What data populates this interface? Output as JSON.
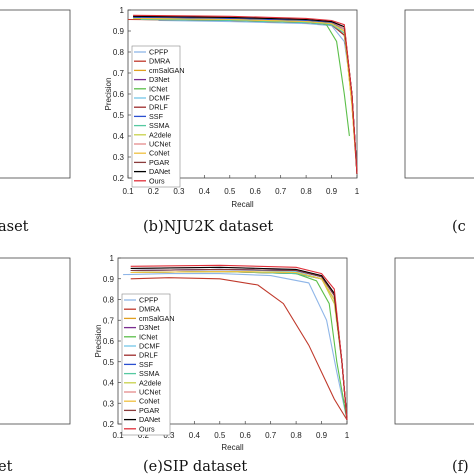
{
  "figure": {
    "captions": {
      "left_top": "aset",
      "middle_top": "(b)NJU2K dataset",
      "right_top": "(c",
      "left_bottom": "et",
      "middle_bottom": "(e)SIP dataset",
      "right_bottom": "(f)"
    }
  },
  "legend_items": [
    {
      "name": "CPFP",
      "color": "#8fb6e8"
    },
    {
      "name": "DMRA",
      "color": "#c0392b"
    },
    {
      "name": "cmSalGAN",
      "color": "#e0a020"
    },
    {
      "name": "D3Net",
      "color": "#7a2d8f"
    },
    {
      "name": "ICNet",
      "color": "#5cbf4a"
    },
    {
      "name": "DCMF",
      "color": "#74c7e8"
    },
    {
      "name": "DRLF",
      "color": "#9e2b2b"
    },
    {
      "name": "SSF",
      "color": "#2a4fd0"
    },
    {
      "name": "SSMA",
      "color": "#55c9a0"
    },
    {
      "name": "A2dele",
      "color": "#c8d24a"
    },
    {
      "name": "UCNet",
      "color": "#e58b8b"
    },
    {
      "name": "CoNet",
      "color": "#f0c040"
    },
    {
      "name": "PGAR",
      "color": "#8a3c3c"
    },
    {
      "name": "DANet",
      "color": "#000000"
    },
    {
      "name": "Ours",
      "color": "#e0303a"
    }
  ],
  "chart_data": [
    {
      "type": "line",
      "panel": "b",
      "title": "(b)NJU2K dataset",
      "xlabel": "Recall",
      "ylabel": "Precision",
      "xlim": [
        0.1,
        1
      ],
      "ylim": [
        0.2,
        1
      ],
      "xticks": [
        "0.1",
        "0.2",
        "0.3",
        "0.4",
        "0.5",
        "0.6",
        "0.7",
        "0.8",
        "0.9",
        "1"
      ],
      "yticks": [
        "0.2",
        "0.3",
        "0.4",
        "0.5",
        "0.6",
        "0.7",
        "0.8",
        "0.9",
        "1"
      ],
      "series": [
        {
          "name": "CPFP",
          "x": [
            0.22,
            0.5,
            0.8,
            0.9,
            0.95,
            0.98,
            1.0
          ],
          "y": [
            0.95,
            0.945,
            0.935,
            0.925,
            0.85,
            0.6,
            0.22
          ]
        },
        {
          "name": "DMRA",
          "x": [
            0.1,
            0.5,
            0.8,
            0.9,
            0.95,
            0.98,
            1.0
          ],
          "y": [
            0.955,
            0.95,
            0.94,
            0.93,
            0.88,
            0.6,
            0.22
          ]
        },
        {
          "name": "cmSalGAN",
          "x": [
            0.15,
            0.5,
            0.8,
            0.9,
            0.95,
            0.98,
            1.0
          ],
          "y": [
            0.96,
            0.955,
            0.945,
            0.935,
            0.9,
            0.55,
            0.22
          ]
        },
        {
          "name": "D3Net",
          "x": [
            0.15,
            0.5,
            0.8,
            0.9,
            0.95,
            0.98,
            1.0
          ],
          "y": [
            0.965,
            0.96,
            0.95,
            0.94,
            0.91,
            0.6,
            0.22
          ]
        },
        {
          "name": "ICNet",
          "x": [
            0.2,
            0.5,
            0.8,
            0.88,
            0.92,
            0.95,
            0.97
          ],
          "y": [
            0.96,
            0.955,
            0.945,
            0.93,
            0.85,
            0.6,
            0.4
          ]
        },
        {
          "name": "DCMF",
          "x": [
            0.15,
            0.5,
            0.8,
            0.9,
            0.95,
            0.98,
            1.0
          ],
          "y": [
            0.965,
            0.96,
            0.95,
            0.94,
            0.9,
            0.58,
            0.22
          ]
        },
        {
          "name": "DRLF",
          "x": [
            0.15,
            0.5,
            0.8,
            0.9,
            0.95,
            0.98,
            1.0
          ],
          "y": [
            0.955,
            0.95,
            0.94,
            0.93,
            0.88,
            0.6,
            0.22
          ]
        },
        {
          "name": "SSF",
          "x": [
            0.12,
            0.5,
            0.8,
            0.9,
            0.95,
            0.98,
            1.0
          ],
          "y": [
            0.965,
            0.96,
            0.95,
            0.94,
            0.91,
            0.6,
            0.22
          ]
        },
        {
          "name": "SSMA",
          "x": [
            0.15,
            0.5,
            0.8,
            0.9,
            0.95,
            0.98,
            1.0
          ],
          "y": [
            0.955,
            0.95,
            0.94,
            0.93,
            0.89,
            0.6,
            0.22
          ]
        },
        {
          "name": "A2dele",
          "x": [
            0.12,
            0.5,
            0.8,
            0.9,
            0.95,
            0.98,
            1.0
          ],
          "y": [
            0.96,
            0.955,
            0.945,
            0.935,
            0.9,
            0.55,
            0.22
          ]
        },
        {
          "name": "UCNet",
          "x": [
            0.15,
            0.5,
            0.8,
            0.9,
            0.95,
            0.98,
            1.0
          ],
          "y": [
            0.97,
            0.965,
            0.955,
            0.945,
            0.91,
            0.6,
            0.22
          ]
        },
        {
          "name": "CoNet",
          "x": [
            0.15,
            0.5,
            0.8,
            0.9,
            0.95,
            0.98,
            1.0
          ],
          "y": [
            0.96,
            0.955,
            0.945,
            0.935,
            0.9,
            0.55,
            0.22
          ]
        },
        {
          "name": "PGAR",
          "x": [
            0.12,
            0.5,
            0.8,
            0.9,
            0.95,
            0.98,
            1.0
          ],
          "y": [
            0.97,
            0.965,
            0.955,
            0.945,
            0.92,
            0.6,
            0.22
          ]
        },
        {
          "name": "DANet",
          "x": [
            0.12,
            0.5,
            0.8,
            0.9,
            0.95,
            0.98,
            1.0
          ],
          "y": [
            0.97,
            0.965,
            0.955,
            0.945,
            0.92,
            0.6,
            0.22
          ]
        },
        {
          "name": "Ours",
          "x": [
            0.12,
            0.5,
            0.8,
            0.9,
            0.95,
            0.98,
            1.0
          ],
          "y": [
            0.975,
            0.97,
            0.96,
            0.95,
            0.93,
            0.6,
            0.22
          ]
        }
      ]
    },
    {
      "type": "line",
      "panel": "e",
      "title": "(e)SIP dataset",
      "xlabel": "Recall",
      "ylabel": "Precision",
      "xlim": [
        0.1,
        1
      ],
      "ylim": [
        0.2,
        1
      ],
      "xticks": [
        "0.1",
        "0.2",
        "0.3",
        "0.4",
        "0.5",
        "0.6",
        "0.7",
        "0.8",
        "0.9",
        "1"
      ],
      "yticks": [
        "0.2",
        "0.3",
        "0.4",
        "0.5",
        "0.6",
        "0.7",
        "0.8",
        "0.9",
        "1"
      ],
      "series": [
        {
          "name": "CPFP",
          "x": [
            0.12,
            0.3,
            0.5,
            0.7,
            0.85,
            0.92,
            0.96,
            1.0
          ],
          "y": [
            0.92,
            0.925,
            0.925,
            0.915,
            0.88,
            0.7,
            0.45,
            0.22
          ]
        },
        {
          "name": "DMRA",
          "x": [
            0.15,
            0.3,
            0.5,
            0.65,
            0.75,
            0.85,
            0.95,
            1.0
          ],
          "y": [
            0.9,
            0.905,
            0.9,
            0.87,
            0.78,
            0.58,
            0.32,
            0.22
          ]
        },
        {
          "name": "cmSalGAN",
          "x": [
            0.15,
            0.5,
            0.8,
            0.9,
            0.95,
            0.98,
            1.0
          ],
          "y": [
            0.93,
            0.935,
            0.93,
            0.9,
            0.8,
            0.5,
            0.22
          ]
        },
        {
          "name": "D3Net",
          "x": [
            0.15,
            0.5,
            0.8,
            0.9,
            0.95,
            0.98,
            1.0
          ],
          "y": [
            0.94,
            0.945,
            0.94,
            0.91,
            0.82,
            0.5,
            0.22
          ]
        },
        {
          "name": "ICNet",
          "x": [
            0.15,
            0.5,
            0.8,
            0.88,
            0.93,
            0.96,
            1.0
          ],
          "y": [
            0.93,
            0.935,
            0.925,
            0.89,
            0.78,
            0.5,
            0.22
          ]
        },
        {
          "name": "DCMF",
          "x": [
            0.15,
            0.5,
            0.8,
            0.9,
            0.95,
            0.98,
            1.0
          ],
          "y": [
            0.94,
            0.945,
            0.935,
            0.9,
            0.8,
            0.5,
            0.22
          ]
        },
        {
          "name": "DRLF",
          "x": [
            0.15,
            0.5,
            0.8,
            0.9,
            0.95,
            0.98,
            1.0
          ],
          "y": [
            0.93,
            0.935,
            0.925,
            0.9,
            0.8,
            0.5,
            0.22
          ]
        },
        {
          "name": "SSF",
          "x": [
            0.15,
            0.5,
            0.8,
            0.9,
            0.95,
            0.98,
            1.0
          ],
          "y": [
            0.94,
            0.945,
            0.94,
            0.91,
            0.82,
            0.5,
            0.22
          ]
        },
        {
          "name": "SSMA",
          "x": [
            0.15,
            0.5,
            0.8,
            0.9,
            0.95,
            0.98,
            1.0
          ],
          "y": [
            0.93,
            0.935,
            0.925,
            0.9,
            0.8,
            0.5,
            0.22
          ]
        },
        {
          "name": "A2dele",
          "x": [
            0.15,
            0.5,
            0.8,
            0.9,
            0.95,
            0.98,
            1.0
          ],
          "y": [
            0.93,
            0.935,
            0.93,
            0.9,
            0.78,
            0.5,
            0.22
          ]
        },
        {
          "name": "UCNet",
          "x": [
            0.15,
            0.5,
            0.8,
            0.9,
            0.95,
            0.98,
            1.0
          ],
          "y": [
            0.95,
            0.955,
            0.945,
            0.915,
            0.83,
            0.5,
            0.22
          ]
        },
        {
          "name": "CoNet",
          "x": [
            0.15,
            0.5,
            0.8,
            0.9,
            0.95,
            0.98,
            1.0
          ],
          "y": [
            0.93,
            0.935,
            0.93,
            0.9,
            0.8,
            0.5,
            0.22
          ]
        },
        {
          "name": "PGAR",
          "x": [
            0.15,
            0.5,
            0.8,
            0.9,
            0.95,
            0.98,
            1.0
          ],
          "y": [
            0.94,
            0.945,
            0.94,
            0.91,
            0.82,
            0.5,
            0.22
          ]
        },
        {
          "name": "DANet",
          "x": [
            0.15,
            0.5,
            0.8,
            0.9,
            0.95,
            0.98,
            1.0
          ],
          "y": [
            0.95,
            0.955,
            0.945,
            0.915,
            0.83,
            0.5,
            0.22
          ]
        },
        {
          "name": "Ours",
          "x": [
            0.15,
            0.5,
            0.8,
            0.9,
            0.95,
            0.98,
            1.0
          ],
          "y": [
            0.96,
            0.965,
            0.955,
            0.925,
            0.85,
            0.5,
            0.22
          ]
        }
      ]
    }
  ]
}
